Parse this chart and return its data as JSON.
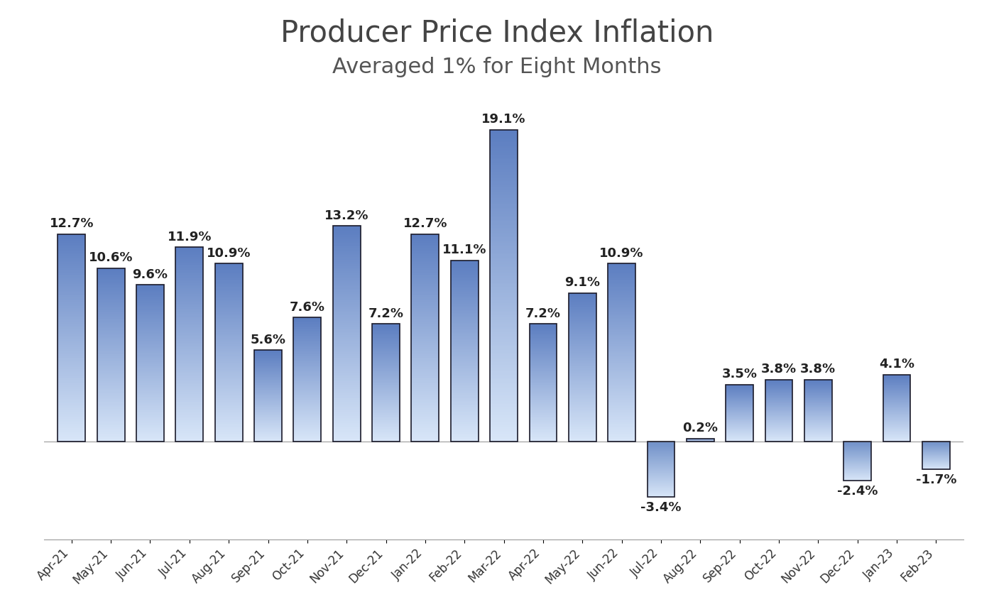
{
  "title": "Producer Price Index Inflation",
  "subtitle": "Averaged 1% for Eight Months",
  "categories": [
    "Apr-21",
    "May-21",
    "Jun-21",
    "Jul-21",
    "Aug-21",
    "Sep-21",
    "Oct-21",
    "Nov-21",
    "Dec-21",
    "Jan-22",
    "Feb-22",
    "Mar-22",
    "Apr-22",
    "May-22",
    "Jun-22",
    "Jul-22",
    "Aug-22",
    "Sep-22",
    "Oct-22",
    "Nov-22",
    "Dec-22",
    "Jan-23",
    "Feb-23"
  ],
  "values": [
    12.7,
    10.6,
    9.6,
    11.9,
    10.9,
    5.6,
    7.6,
    13.2,
    7.2,
    12.7,
    11.1,
    19.1,
    7.2,
    9.1,
    10.9,
    -3.4,
    0.2,
    3.5,
    3.8,
    3.8,
    -2.4,
    4.1,
    -1.7
  ],
  "bar_top_color": "#5B7DC0",
  "bar_bottom_color": "#D8E6F8",
  "neg_bar_top_color": "#7090C8",
  "neg_bar_bottom_color": "#D8E6F8",
  "bar_edge_color": "#1A1A2A",
  "background_color": "#FFFFFF",
  "title_fontsize": 30,
  "subtitle_fontsize": 22,
  "label_fontsize": 13,
  "tick_fontsize": 12,
  "ylim_min": -6,
  "ylim_max": 22,
  "highlight_indices": [
    15,
    20,
    22
  ]
}
